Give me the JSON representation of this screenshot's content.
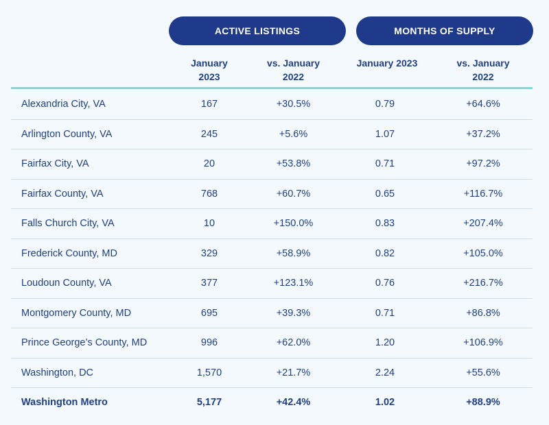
{
  "groups": {
    "active_listings": "ACTIVE LISTINGS",
    "months_of_supply": "MONTHS OF SUPPLY"
  },
  "columns": {
    "listings_jan_2023": [
      "January",
      "2023"
    ],
    "listings_vs_jan_2022": [
      "vs. January",
      "2022"
    ],
    "supply_jan_2023": [
      "January 2023"
    ],
    "supply_vs_jan_2022": [
      "vs. January",
      "2022"
    ]
  },
  "rows": [
    {
      "region": "Alexandria City, VA",
      "listings": "167",
      "listings_change": "+30.5%",
      "supply": "0.79",
      "supply_change": "+64.6%"
    },
    {
      "region": "Arlington County, VA",
      "listings": "245",
      "listings_change": "+5.6%",
      "supply": "1.07",
      "supply_change": "+37.2%"
    },
    {
      "region": "Fairfax City, VA",
      "listings": "20",
      "listings_change": "+53.8%",
      "supply": "0.71",
      "supply_change": "+97.2%"
    },
    {
      "region": "Fairfax County, VA",
      "listings": "768",
      "listings_change": "+60.7%",
      "supply": "0.65",
      "supply_change": "+116.7%"
    },
    {
      "region": "Falls Church City, VA",
      "listings": "10",
      "listings_change": "+150.0%",
      "supply": "0.83",
      "supply_change": "+207.4%"
    },
    {
      "region": "Frederick County, MD",
      "listings": "329",
      "listings_change": "+58.9%",
      "supply": "0.82",
      "supply_change": "+105.0%"
    },
    {
      "region": "Loudoun County, VA",
      "listings": "377",
      "listings_change": "+123.1%",
      "supply": "0.76",
      "supply_change": "+216.7%"
    },
    {
      "region": "Montgomery County, MD",
      "listings": "695",
      "listings_change": "+39.3%",
      "supply": "0.71",
      "supply_change": "+86.8%"
    },
    {
      "region": "Prince George’s County, MD",
      "listings": "996",
      "listings_change": "+62.0%",
      "supply": "1.20",
      "supply_change": "+106.9%"
    },
    {
      "region": "Washington, DC",
      "listings": "1,570",
      "listings_change": "+21.7%",
      "supply": "2.24",
      "supply_change": "+55.6%"
    }
  ],
  "total": {
    "region": "Washington Metro",
    "listings": "5,177",
    "listings_change": "+42.4%",
    "supply": "1.02",
    "supply_change": "+88.9%"
  },
  "colors": {
    "header_pill": "#1f3a8a",
    "text": "#1f3f86",
    "accent_line": "#7fd9d4",
    "background": "#f3f9fc",
    "row_divider": "#cfe0ec"
  }
}
